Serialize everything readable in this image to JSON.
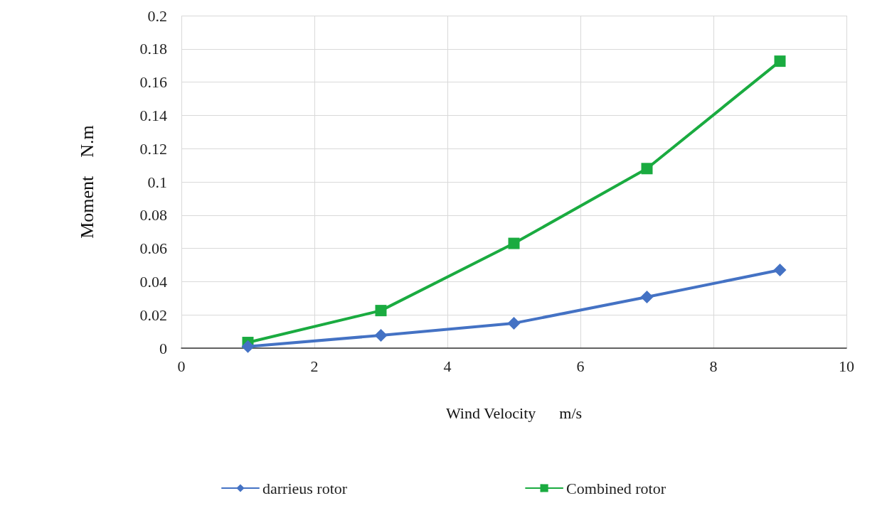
{
  "chart_data": {
    "type": "line",
    "xlabel": "Wind Velocity      m/s",
    "ylabel": "Moment    N.m",
    "x": [
      1,
      3,
      5,
      7,
      9
    ],
    "series": [
      {
        "name": "darrieus rotor",
        "color": "#4472c4",
        "marker": "diamond",
        "values": [
          0.001,
          0.0077,
          0.015,
          0.0308,
          0.047
        ]
      },
      {
        "name": "Combined rotor",
        "color": "#1aab40",
        "marker": "square",
        "values": [
          0.0034,
          0.0226,
          0.063,
          0.108,
          0.1726
        ]
      }
    ],
    "xlim": [
      0,
      10
    ],
    "xticks": [
      0,
      2,
      4,
      6,
      8,
      10
    ],
    "ylim": [
      0,
      0.2
    ],
    "yticks": [
      0,
      0.02,
      0.04,
      0.06,
      0.08,
      0.1,
      0.12,
      0.14,
      0.16,
      0.18,
      0.2
    ],
    "grid": true,
    "legend": "bottom",
    "line_style": "solid"
  }
}
